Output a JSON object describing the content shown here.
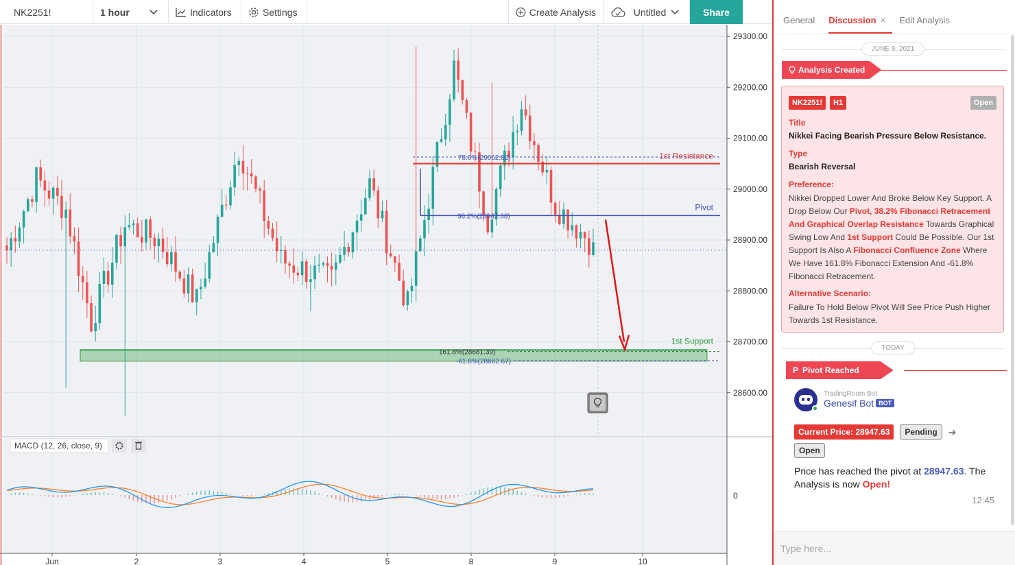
{
  "toolbar": {
    "symbol": "NK2251!",
    "interval": "1 hour",
    "indicators_label": "Indicators",
    "settings_label": "Settings",
    "create_analysis_label": "Create Analysis",
    "layout_name": "Untitled",
    "share_label": "Share"
  },
  "chart": {
    "price_axis": [
      "29300.00",
      "29200.00",
      "29100.00",
      "29000.00",
      "28900.00",
      "28800.00",
      "28700.00",
      "28600.00"
    ],
    "time_axis": [
      "Jun",
      "2",
      "3",
      "4",
      "5",
      "8",
      "9",
      "10"
    ],
    "lines": {
      "resistance_label": "1st Resistance",
      "pivot_label": "Pivot",
      "support_label": "1st Support",
      "fib_786_label": "78.6%(29062.82)",
      "fib_382_label": "38.2%(28947.68)",
      "fib_1618_label": "161.8%(28681.39)",
      "fib_neg618_label": "-61.8%(28662.67)"
    },
    "macd": {
      "label": "MACD (12, 26, close, 9)",
      "zero_label": "0"
    },
    "colors": {
      "up": "#26a69a",
      "down": "#ef5350",
      "resistance": "#e53935",
      "pivot": "#3f51b5",
      "support": "#2e9e3e",
      "macd_line": "#2196f3",
      "signal_line": "#ff7f27"
    }
  },
  "panel": {
    "tabs": [
      {
        "label": "General",
        "active": false
      },
      {
        "label": "Discussion",
        "active": true
      },
      {
        "label": "Edit Analysis",
        "active": false
      }
    ],
    "date_1": "JUNE 9, 2021",
    "event_1": "Analysis Created",
    "card": {
      "symbol": "NK2251!",
      "timeframe": "H1",
      "status": "Open",
      "title_label": "Title",
      "title": "Nikkei Facing Bearish Pressure Below Resistance.",
      "type_label": "Type",
      "type": "Bearish Reversal",
      "preference_label": "Preference:",
      "preference": {
        "t1": "Nikkei Dropped Lower And Broke Below Key Support. A Drop Below Our ",
        "h1": "Pivot, 38.2% Fibonacci Retracement And Graphical Overlap Resistance",
        "t2": " Towards Graphical Swing Low And ",
        "h2": "1st Support",
        "t3": " Could Be Possible. Our 1st Support Is Also A ",
        "h3": "Fibonacci Confluence Zone",
        "t4": " Where We Have 161.8% Fibonacci Extension And -61.8% Fibonacci Retracement."
      },
      "alt_label": "Alternative Scenario:",
      "alt": "Failure To Hold Below Pivot Will See Price Push Higher Towards 1st Resistance."
    },
    "date_2": "TODAY",
    "event_2": "Pivot Reached",
    "bot": {
      "subtitle": "TradingRoom Bot",
      "name": "Genesif Bot",
      "badge": "BOT",
      "price_chip": "Current Price: 28947.63",
      "pending_chip": "Pending",
      "open_chip": "Open",
      "msg_1": "Price has reached the pivot at ",
      "msg_price": "28947.63",
      "msg_2": ". The Analysis is now ",
      "msg_status": "Open!",
      "time": "12:45"
    },
    "composer_placeholder": "Type here..."
  }
}
